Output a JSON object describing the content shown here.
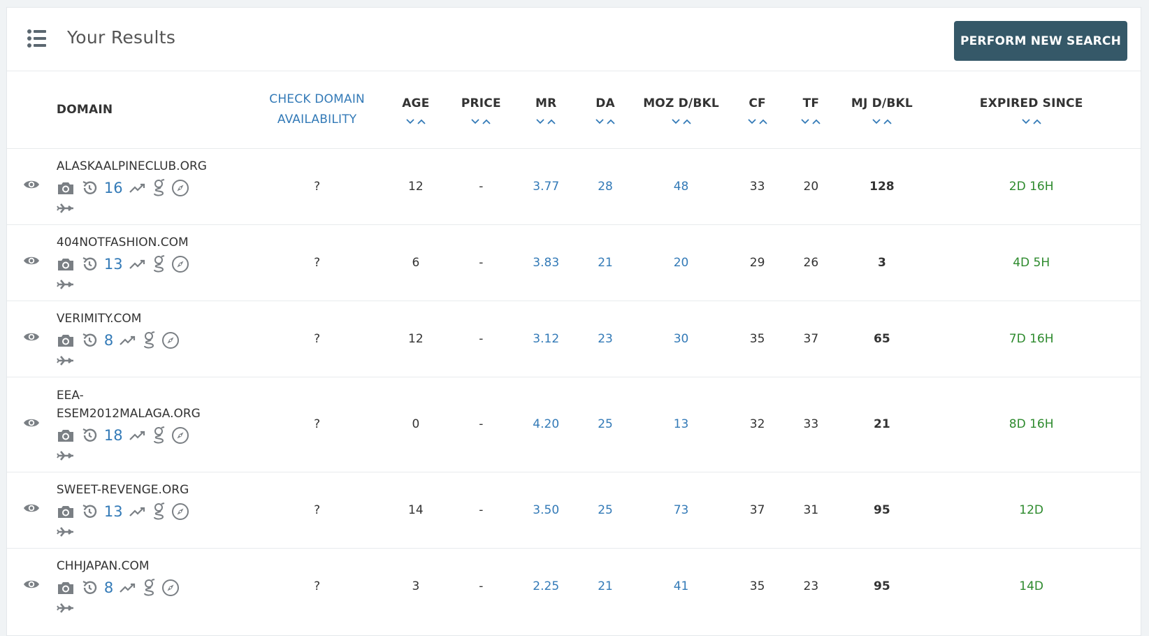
{
  "header": {
    "title": "Your Results",
    "new_search_label": "PERFORM NEW SEARCH"
  },
  "columns": {
    "domain": "DOMAIN",
    "availability": [
      "CHECK DOMAIN",
      "AVAILABILITY"
    ],
    "age": "AGE",
    "price": "PRICE",
    "mr": "MR",
    "da": "DA",
    "moz": "MOZ D/BKL",
    "cf": "CF",
    "tf": "TF",
    "mj": "MJ D/BKL",
    "expired": "EXPIRED SINCE"
  },
  "rows": [
    {
      "domain": "ALASKAALPINECLUB.ORG",
      "archive_count": "16",
      "availability": "?",
      "age": "12",
      "price": "-",
      "mr": "3.77",
      "da": "28",
      "moz": "48",
      "cf": "33",
      "tf": "20",
      "mj": "128",
      "expired": "2D 16H"
    },
    {
      "domain": "404NOTFASHION.COM",
      "archive_count": "13",
      "availability": "?",
      "age": "6",
      "price": "-",
      "mr": "3.83",
      "da": "21",
      "moz": "20",
      "cf": "29",
      "tf": "26",
      "mj": "3",
      "expired": "4D 5H"
    },
    {
      "domain": "VERIMITY.COM",
      "archive_count": "8",
      "availability": "?",
      "age": "12",
      "price": "-",
      "mr": "3.12",
      "da": "23",
      "moz": "30",
      "cf": "35",
      "tf": "37",
      "mj": "65",
      "expired": "7D 16H"
    },
    {
      "domain": "EEA-ESEM2012MALAGA.ORG",
      "archive_count": "18",
      "availability": "?",
      "age": "0",
      "price": "-",
      "mr": "4.20",
      "da": "25",
      "moz": "13",
      "cf": "32",
      "tf": "33",
      "mj": "21",
      "expired": "8D 16H"
    },
    {
      "domain": "SWEET-REVENGE.ORG",
      "archive_count": "13",
      "availability": "?",
      "age": "14",
      "price": "-",
      "mr": "3.50",
      "da": "25",
      "moz": "73",
      "cf": "37",
      "tf": "31",
      "mj": "95",
      "expired": "12D"
    },
    {
      "domain": "CHHJAPAN.COM",
      "archive_count": "8",
      "availability": "?",
      "age": "3",
      "price": "-",
      "mr": "2.25",
      "da": "21",
      "moz": "41",
      "cf": "35",
      "tf": "23",
      "mj": "95",
      "expired": "14D"
    }
  ],
  "colors": {
    "button_bg": "#355868",
    "link_blue": "#337ab7",
    "expired_green": "#2d8a2d",
    "icon_gray": "#7a7f84"
  },
  "icons": [
    "list-icon",
    "eye-icon",
    "camera-icon",
    "history-icon",
    "trend-icon",
    "google-icon",
    "compass-icon",
    "plane-icon",
    "chevron-down-icon",
    "chevron-up-icon"
  ]
}
